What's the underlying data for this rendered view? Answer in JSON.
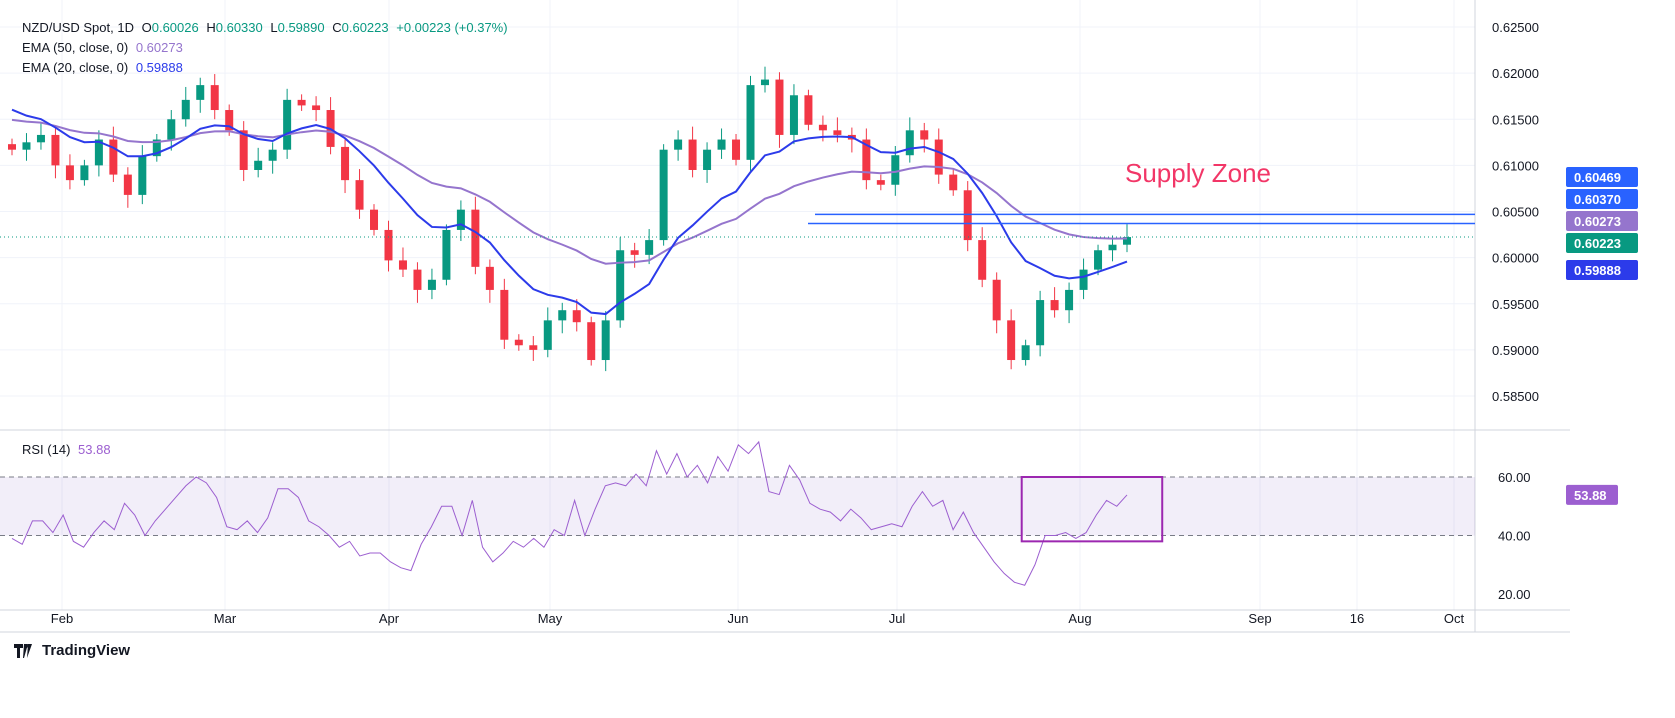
{
  "header": {
    "symbol": "NZD/USD Spot, 1D",
    "open_label": "O",
    "open": "0.60026",
    "high_label": "H",
    "high": "0.60330",
    "low_label": "L",
    "low": "0.59890",
    "close_label": "C",
    "close": "0.60223",
    "change": "+0.00223 (+0.37%)",
    "ema50_label": "EMA (50, close, 0)",
    "ema50_value": "0.60273",
    "ema20_label": "EMA (20, close, 0)",
    "ema20_value": "0.59888"
  },
  "rsi_header": {
    "label": "RSI (14)",
    "value": "53.88"
  },
  "annotation": "Supply Zone",
  "branding": "TradingView",
  "colors": {
    "up": "#089981",
    "down": "#f23645",
    "ema20": "#2c3bea",
    "ema50": "#9575cd",
    "rsi": "#9c5fd0",
    "supply": "#f23667",
    "zone_line": "#2962ff"
  },
  "chart_data": {
    "type": "candlestick",
    "title": "NZD/USD Spot, 1D",
    "x_ticks": [
      "Feb",
      "Mar",
      "Apr",
      "May",
      "Jun",
      "Jul",
      "Aug",
      "Sep",
      "16",
      "Oct"
    ],
    "price_ticks": [
      "0.62500",
      "0.62000",
      "0.61500",
      "0.61000",
      "0.60500",
      "0.60000",
      "0.59500",
      "0.59000",
      "0.58500"
    ],
    "ylim": [
      0.585,
      0.625
    ],
    "closes": [
      0.6117,
      0.6125,
      0.6133,
      0.61,
      0.6084,
      0.61,
      0.6128,
      0.609,
      0.6068,
      0.611,
      0.6128,
      0.615,
      0.6171,
      0.6187,
      0.616,
      0.6138,
      0.6095,
      0.6105,
      0.6117,
      0.6171,
      0.6165,
      0.616,
      0.612,
      0.6084,
      0.6052,
      0.603,
      0.5997,
      0.5987,
      0.5965,
      0.5976,
      0.603,
      0.6052,
      0.599,
      0.5965,
      0.5911,
      0.5905,
      0.59,
      0.5932,
      0.5943,
      0.593,
      0.5889,
      0.5932,
      0.6008,
      0.6003,
      0.6019,
      0.6117,
      0.6128,
      0.6095,
      0.6117,
      0.6128,
      0.6106,
      0.6187,
      0.6193,
      0.6133,
      0.6176,
      0.6144,
      0.6138,
      0.6133,
      0.6128,
      0.6084,
      0.6079,
      0.6111,
      0.6138,
      0.6128,
      0.609,
      0.6073,
      0.6019,
      0.5976,
      0.5932,
      0.5889,
      0.5905,
      0.5954,
      0.5943,
      0.5965,
      0.5987,
      0.6008,
      0.6014,
      0.60223
    ],
    "ema20_seed": 0.617,
    "ema50_seed": 0.6152,
    "supply_lines": [
      0.60469,
      0.6037
    ],
    "current_price": 0.60223,
    "price_badges": [
      {
        "value": "0.60469",
        "price": 0.60469,
        "color": "#2962ff"
      },
      {
        "value": "0.60370",
        "price": 0.6037,
        "color": "#2962ff"
      },
      {
        "value": "0.60273",
        "price": 0.60273,
        "color": "#9575cd"
      },
      {
        "value": "0.60223",
        "price": 0.60223,
        "color": "#089981"
      },
      {
        "value": "0.59888",
        "price": 0.59888,
        "color": "#2c3bea"
      }
    ],
    "rsi": {
      "ticks": [
        "60.00",
        "40.00",
        "20.00"
      ],
      "band": [
        40,
        60
      ],
      "badge": "53.88",
      "values": [
        39,
        37,
        45,
        45,
        41,
        47,
        38,
        36,
        41,
        45,
        42,
        51,
        47,
        40,
        45,
        49,
        53,
        57,
        60,
        58,
        53,
        43,
        42,
        45,
        41,
        46,
        56,
        56,
        53,
        45,
        43,
        40,
        36,
        38,
        33,
        34,
        34,
        31,
        29,
        28,
        37,
        43,
        50,
        50,
        40,
        52,
        36,
        31,
        34,
        38,
        36,
        39,
        36,
        42,
        40,
        52,
        40,
        49,
        57,
        58,
        57,
        61,
        57,
        69,
        61,
        68,
        60,
        64,
        58,
        67,
        62,
        71,
        68,
        72,
        55,
        54,
        64,
        59,
        51,
        49,
        48,
        45,
        49,
        46,
        42,
        43,
        44,
        43,
        50,
        55,
        50,
        52,
        42,
        48,
        41,
        36,
        31,
        27,
        24,
        23,
        30,
        40,
        40,
        41,
        39,
        41,
        47,
        52,
        50,
        53.88
      ],
      "highlight_box": [
        {
          "from_index": 99,
          "to_index": 110,
          "low": 38,
          "high": 60
        }
      ]
    }
  }
}
